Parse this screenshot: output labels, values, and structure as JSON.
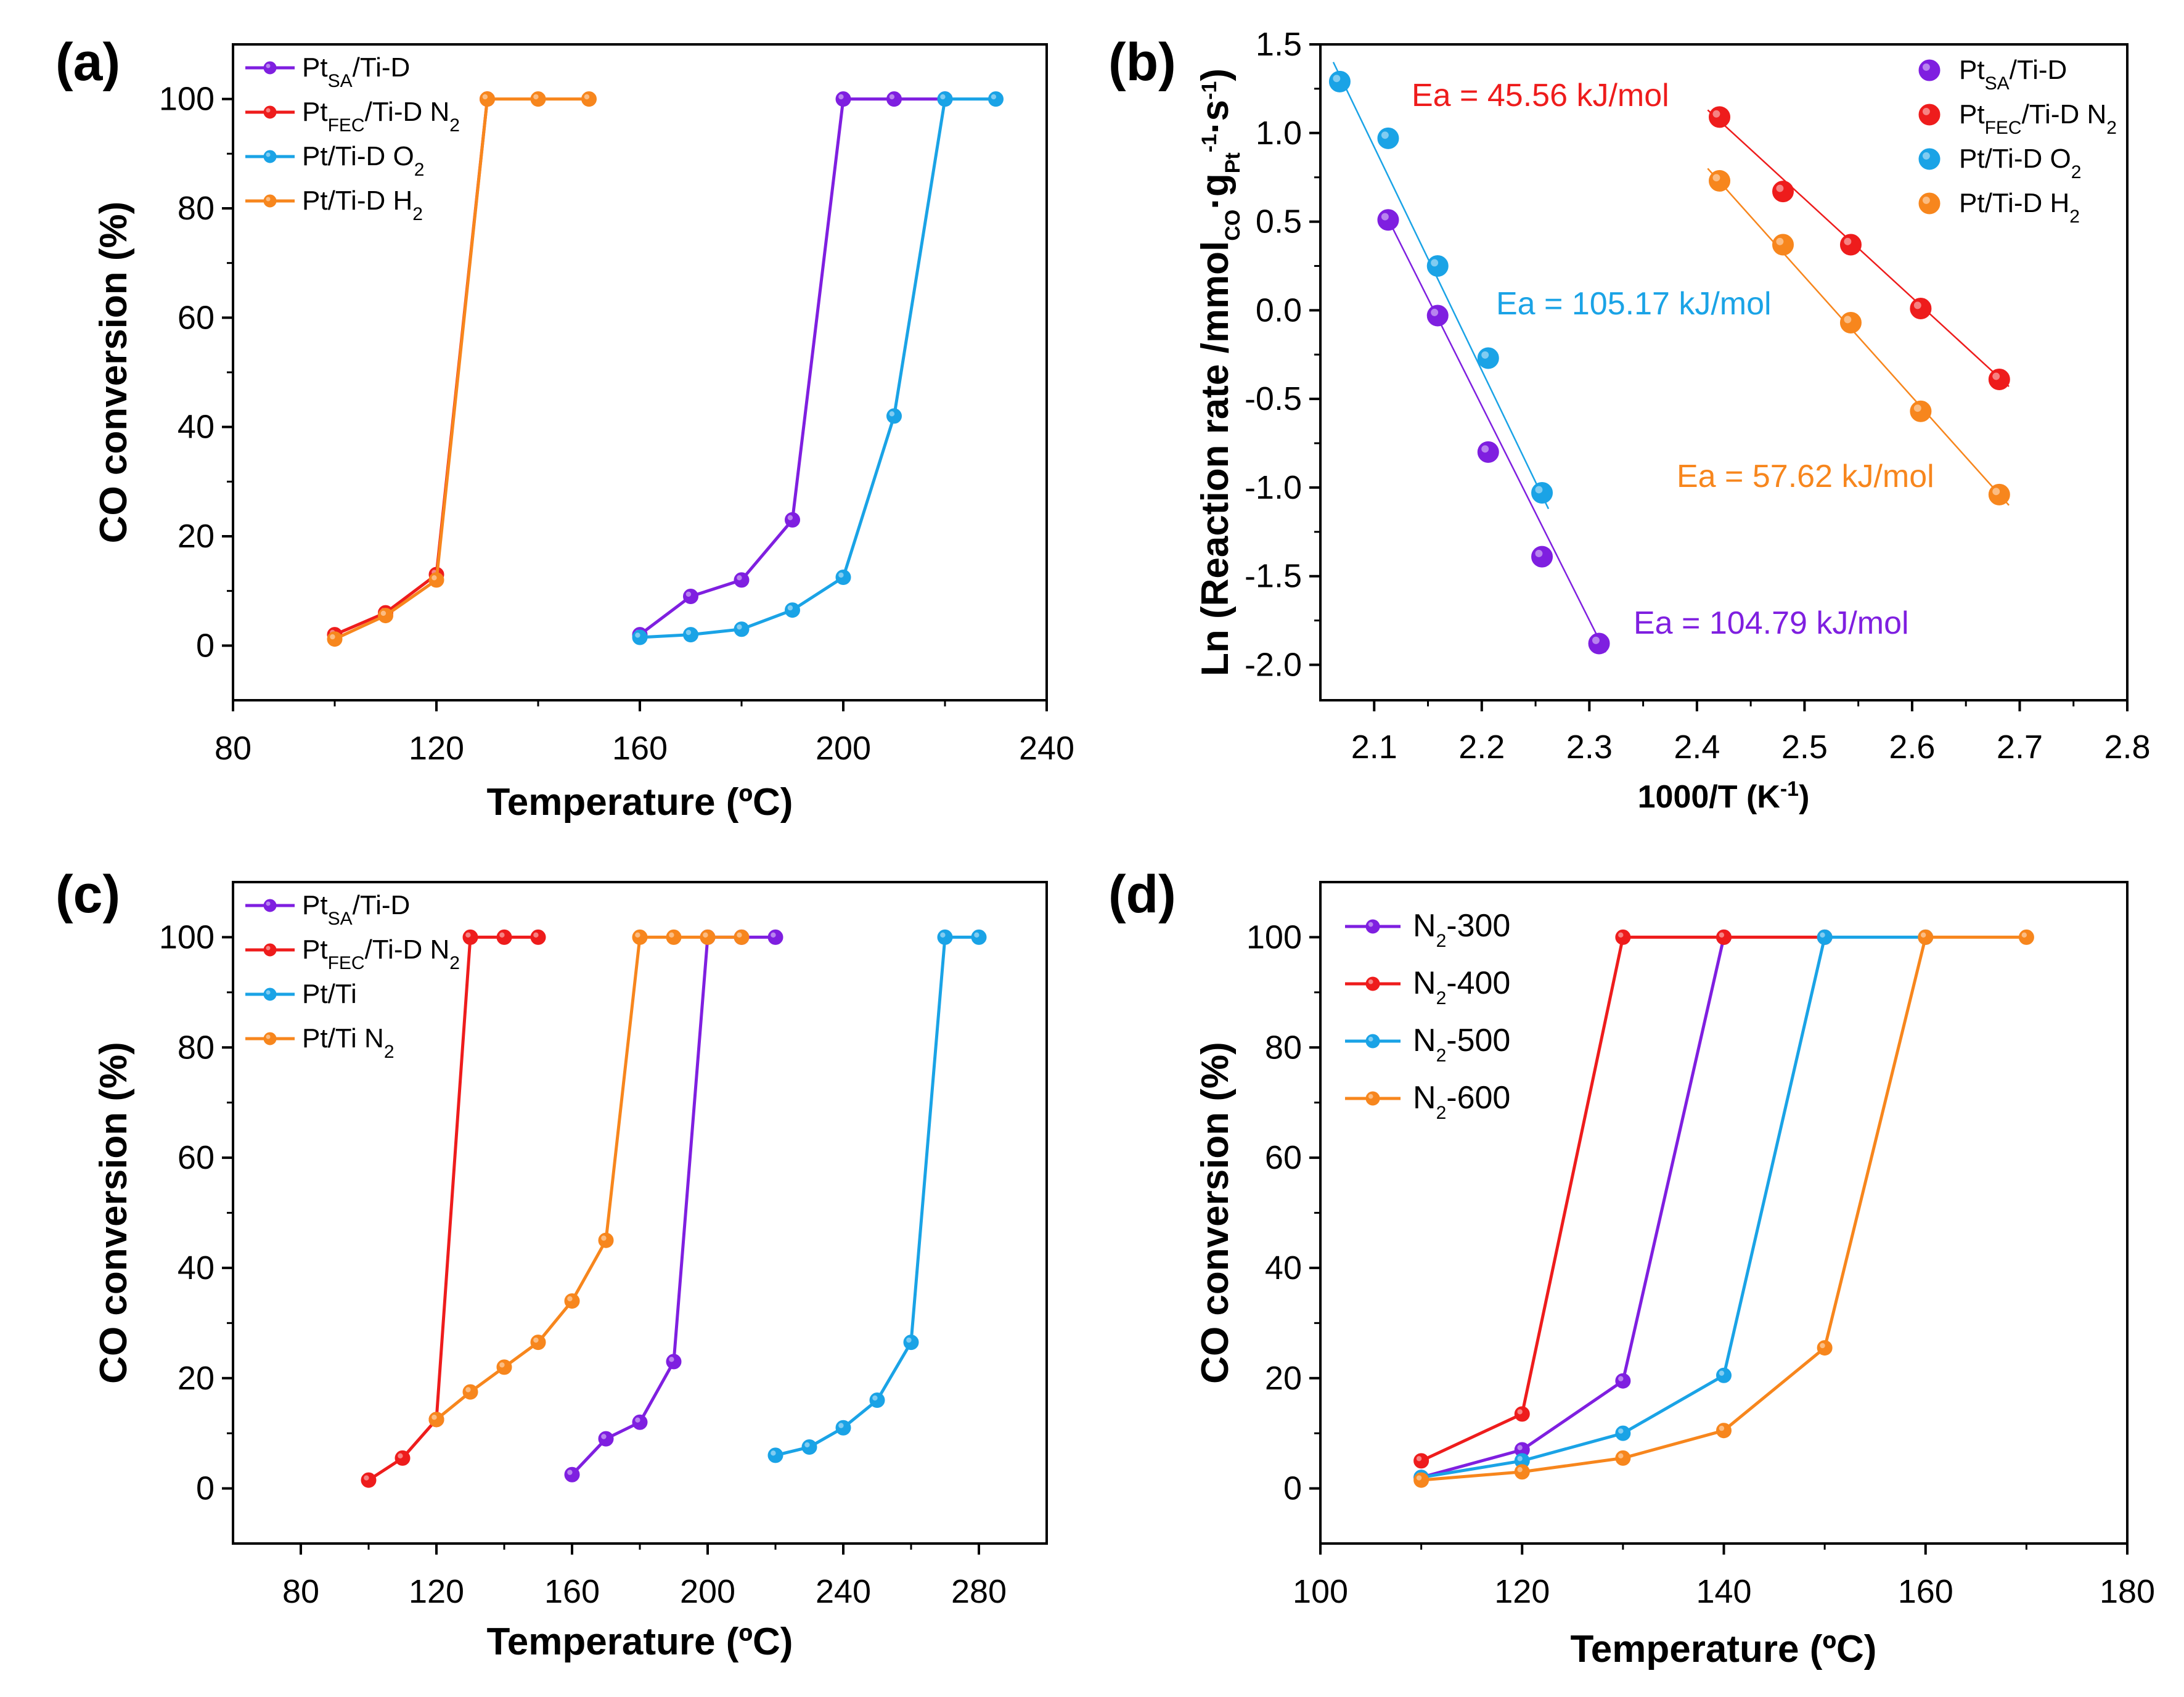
{
  "colors": {
    "purple": "#7f1fe0",
    "red": "#ee1c1c",
    "blue": "#1aa3e6",
    "orange": "#f7861d"
  },
  "chart_data": [
    {
      "panel": "(a)",
      "type": "line",
      "xlabel": "Temperature (ºC)",
      "ylabel": "CO conversion (%)",
      "xlim": [
        80,
        240
      ],
      "ylim": [
        -10,
        110
      ],
      "xticks": [
        80,
        120,
        160,
        200,
        240
      ],
      "yticks": [
        0,
        20,
        40,
        60,
        80,
        100
      ],
      "legend": "top-left",
      "series": [
        {
          "name": "Pt_SA/Ti-D",
          "base": "Pt",
          "sub": "SA",
          "rest": "/Ti-D",
          "sub2": "",
          "color": "purple",
          "x": [
            160,
            170,
            180,
            190,
            200,
            210,
            220
          ],
          "y": [
            2,
            9,
            12,
            23,
            100,
            100,
            100
          ]
        },
        {
          "name": "Pt_FEC/Ti-D N2",
          "base": "Pt",
          "sub": "FEC",
          "rest": "/Ti-D N",
          "sub2": "2",
          "color": "red",
          "x": [
            100,
            110,
            120,
            130
          ],
          "y": [
            2,
            6,
            13,
            100
          ]
        },
        {
          "name": "Pt/Ti-D O2",
          "base": "Pt/Ti-D O",
          "sub": "2",
          "rest": "",
          "sub2": "",
          "color": "blue",
          "x": [
            160,
            170,
            180,
            190,
            200,
            210,
            220,
            230
          ],
          "y": [
            1.5,
            2,
            3,
            6.5,
            12.5,
            42,
            100,
            100
          ]
        },
        {
          "name": "Pt/Ti-D H2",
          "base": "Pt/Ti-D H",
          "sub": "2",
          "rest": "",
          "sub2": "",
          "color": "orange",
          "x": [
            100,
            110,
            120,
            130,
            140,
            150
          ],
          "y": [
            1.2,
            5.5,
            12,
            100,
            100,
            100
          ]
        }
      ]
    },
    {
      "panel": "(b)",
      "type": "scatter",
      "xlabel": "1000/T (K-1)",
      "ylabel": "Ln (Reaction rate /mmolCO·gPt-1·s-1)",
      "xlim": [
        2.05,
        2.8
      ],
      "ylim": [
        -2.2,
        1.5
      ],
      "xticks": [
        2.1,
        2.2,
        2.3,
        2.4,
        2.5,
        2.6,
        2.7,
        2.8
      ],
      "yticks": [
        -2.0,
        -1.5,
        -1.0,
        -0.5,
        0.0,
        0.5,
        1.0,
        1.5
      ],
      "legend": "top-right",
      "series": [
        {
          "name": "Pt_SA/Ti-D",
          "base": "Pt",
          "sub": "SA",
          "rest": "/Ti-D",
          "sub2": "",
          "color": "purple",
          "x": [
            2.113,
            2.159,
            2.206,
            2.256,
            2.309
          ],
          "y": [
            0.51,
            -0.03,
            -0.8,
            -1.39,
            -1.88
          ],
          "fit": [
            [
              2.11,
              0.55
            ],
            [
              2.315,
              -1.93
            ]
          ]
        },
        {
          "name": "Pt_FEC/Ti-D N2",
          "base": "Pt",
          "sub": "FEC",
          "rest": "/Ti-D N",
          "sub2": "2",
          "color": "red",
          "x": [
            2.421,
            2.48,
            2.543,
            2.608,
            2.681
          ],
          "y": [
            1.09,
            0.67,
            0.37,
            0.01,
            -0.39
          ],
          "fit": [
            [
              2.41,
              1.13
            ],
            [
              2.69,
              -0.43
            ]
          ]
        },
        {
          "name": "Pt/Ti-D O2",
          "base": "Pt/Ti-D O",
          "sub": "2",
          "rest": "",
          "sub2": "",
          "color": "blue",
          "x": [
            2.068,
            2.113,
            2.159,
            2.206,
            2.256
          ],
          "y": [
            1.29,
            0.97,
            0.25,
            -0.27,
            -1.03
          ],
          "fit": [
            [
              2.062,
              1.4
            ],
            [
              2.262,
              -1.12
            ]
          ]
        },
        {
          "name": "Pt/Ti-D H2",
          "base": "Pt/Ti-D H",
          "sub": "2",
          "rest": "",
          "sub2": "",
          "color": "orange",
          "x": [
            2.421,
            2.48,
            2.543,
            2.608,
            2.681
          ],
          "y": [
            0.73,
            0.37,
            -0.07,
            -0.57,
            -1.04
          ],
          "fit": [
            [
              2.41,
              0.8
            ],
            [
              2.69,
              -1.1
            ]
          ]
        }
      ],
      "annotations": [
        {
          "text": "Ea = 45.56 kJ/mol",
          "color": "red"
        },
        {
          "text": "Ea = 105.17 kJ/mol",
          "color": "blue"
        },
        {
          "text": "Ea = 57.62 kJ/mol",
          "color": "orange"
        },
        {
          "text": "Ea = 104.79 kJ/mol",
          "color": "purple"
        }
      ]
    },
    {
      "panel": "(c)",
      "type": "line",
      "xlabel": "Temperature (ºC)",
      "ylabel": "CO conversion (%)",
      "xlim": [
        60,
        300
      ],
      "ylim": [
        -10,
        110
      ],
      "xticks": [
        80,
        120,
        160,
        200,
        240,
        280
      ],
      "yticks": [
        0,
        20,
        40,
        60,
        80,
        100
      ],
      "legend": "top-left",
      "series": [
        {
          "name": "Pt_SA/Ti-D",
          "base": "Pt",
          "sub": "SA",
          "rest": "/Ti-D",
          "sub2": "",
          "color": "purple",
          "x": [
            160,
            170,
            180,
            190,
            200,
            210,
            220
          ],
          "y": [
            2.5,
            9,
            12,
            23,
            100,
            100,
            100
          ]
        },
        {
          "name": "Pt_FEC/Ti-D N2",
          "base": "Pt",
          "sub": "FEC",
          "rest": "/Ti-D N",
          "sub2": "2",
          "color": "red",
          "x": [
            100,
            110,
            120,
            130,
            140,
            150
          ],
          "y": [
            1.5,
            5.5,
            12.5,
            100,
            100,
            100
          ]
        },
        {
          "name": "Pt/Ti",
          "base": "Pt/Ti",
          "sub": "",
          "rest": "",
          "sub2": "",
          "color": "blue",
          "x": [
            220,
            230,
            240,
            250,
            260,
            270,
            280
          ],
          "y": [
            6,
            7.5,
            11,
            16,
            26.5,
            100,
            100
          ]
        },
        {
          "name": "Pt/Ti N2",
          "base": "Pt/Ti N",
          "sub": "2",
          "rest": "",
          "sub2": "",
          "color": "orange",
          "x": [
            120,
            130,
            140,
            150,
            160,
            170,
            180,
            190,
            200,
            210
          ],
          "y": [
            12.5,
            17.5,
            22,
            26.5,
            34,
            45,
            100,
            100,
            100,
            100
          ]
        }
      ]
    },
    {
      "panel": "(d)",
      "type": "line",
      "xlabel": "Temperature (ºC)",
      "ylabel": "CO conversion (%)",
      "xlim": [
        100,
        180
      ],
      "ylim": [
        -10,
        110
      ],
      "xticks": [
        100,
        120,
        140,
        160,
        180
      ],
      "yticks": [
        0,
        20,
        40,
        60,
        80,
        100
      ],
      "legend": "top-left",
      "series": [
        {
          "name": "N2-300",
          "base": "N",
          "sub": "2",
          "rest": "-300",
          "sub2": "",
          "color": "purple",
          "x": [
            110,
            120,
            130,
            140
          ],
          "y": [
            2,
            7,
            19.5,
            100
          ]
        },
        {
          "name": "N2-400",
          "base": "N",
          "sub": "2",
          "rest": "-400",
          "sub2": "",
          "color": "red",
          "x": [
            110,
            120,
            130,
            140,
            150
          ],
          "y": [
            5,
            13.5,
            100,
            100,
            100
          ]
        },
        {
          "name": "N2-500",
          "base": "N",
          "sub": "2",
          "rest": "-500",
          "sub2": "",
          "color": "blue",
          "x": [
            110,
            120,
            130,
            140,
            150,
            160
          ],
          "y": [
            2,
            5,
            10,
            20.5,
            100,
            100
          ]
        },
        {
          "name": "N2-600",
          "base": "N",
          "sub": "2",
          "rest": "-600",
          "sub2": "",
          "color": "orange",
          "x": [
            110,
            120,
            130,
            140,
            150,
            160,
            170
          ],
          "y": [
            1.5,
            3,
            5.5,
            10.5,
            25.5,
            100,
            100
          ]
        }
      ]
    }
  ]
}
